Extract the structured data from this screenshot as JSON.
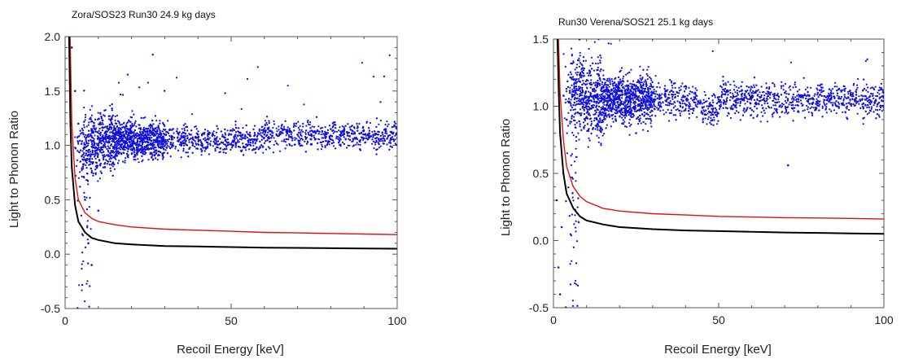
{
  "chart_data": [
    {
      "type": "scatter",
      "title": "Zora/SOS23 Run30 24.9 kg days",
      "xlabel": "Recoil Energy [keV]",
      "ylabel": "Light to Phonon Ratio",
      "xlim": [
        0,
        100
      ],
      "ylim": [
        -0.5,
        2.0
      ],
      "xticks": [
        0,
        50,
        100
      ],
      "xtick_labels": [
        "0",
        "50",
        "100"
      ],
      "yticks": [
        -0.5,
        0.0,
        0.5,
        1.0,
        1.5,
        2.0
      ],
      "ytick_labels": [
        "-0.5",
        "0.0",
        "0.5",
        "1.0",
        "1.5",
        "2.0"
      ],
      "grid": false,
      "series": [
        {
          "kind": "scatter",
          "color": "#1010e0",
          "points": [
            [
              2,
              1.9
            ],
            [
              3,
              1.5
            ],
            [
              4,
              1.2
            ],
            [
              5,
              0.9
            ],
            [
              6,
              0.5
            ],
            [
              7,
              0.1
            ],
            [
              8,
              -0.1
            ],
            [
              10,
              0.4
            ],
            [
              10,
              1.0
            ],
            [
              12,
              0.8
            ],
            [
              15,
              1.1
            ],
            [
              20,
              1.0
            ],
            [
              25,
              1.0
            ],
            [
              30,
              1.1
            ],
            [
              35,
              1.0
            ],
            [
              40,
              1.1
            ],
            [
              50,
              1.1
            ],
            [
              60,
              1.1
            ],
            [
              70,
              1.1
            ],
            [
              80,
              1.15
            ],
            [
              90,
              1.1
            ],
            [
              100,
              1.1
            ]
          ]
        },
        {
          "kind": "line",
          "color": "#e01010",
          "points": [
            [
              1.5,
              2.0
            ],
            [
              2,
              1.2
            ],
            [
              3,
              0.7
            ],
            [
              4,
              0.5
            ],
            [
              6,
              0.38
            ],
            [
              8,
              0.33
            ],
            [
              10,
              0.3
            ],
            [
              15,
              0.27
            ],
            [
              20,
              0.25
            ],
            [
              30,
              0.23
            ],
            [
              40,
              0.22
            ],
            [
              50,
              0.21
            ],
            [
              60,
              0.2
            ],
            [
              70,
              0.195
            ],
            [
              80,
              0.19
            ],
            [
              90,
              0.185
            ],
            [
              100,
              0.18
            ]
          ]
        },
        {
          "kind": "line",
          "color": "#000000",
          "points": [
            [
              1.2,
              2.0
            ],
            [
              1.6,
              1.2
            ],
            [
              2,
              0.8
            ],
            [
              3,
              0.45
            ],
            [
              4,
              0.3
            ],
            [
              6,
              0.2
            ],
            [
              8,
              0.15
            ],
            [
              10,
              0.13
            ],
            [
              15,
              0.1
            ],
            [
              20,
              0.09
            ],
            [
              30,
              0.075
            ],
            [
              40,
              0.07
            ],
            [
              50,
              0.065
            ],
            [
              60,
              0.06
            ],
            [
              70,
              0.058
            ],
            [
              80,
              0.055
            ],
            [
              90,
              0.052
            ],
            [
              100,
              0.05
            ]
          ]
        }
      ]
    },
    {
      "type": "scatter",
      "title": "Run30 Verena/SOS21 25.1 kg days",
      "xlabel": "Recoil Energy [keV]",
      "ylabel": "Light to Phonon Ratio",
      "xlim": [
        0,
        100
      ],
      "ylim": [
        -0.5,
        1.5
      ],
      "xticks": [
        0,
        50,
        100
      ],
      "xtick_labels": [
        "0",
        "50",
        "100"
      ],
      "yticks": [
        -0.5,
        0.0,
        0.5,
        1.0,
        1.5
      ],
      "ytick_labels": [
        "-0.5",
        "0.0",
        "0.5",
        "1.0",
        "1.5"
      ],
      "grid": false,
      "series": [
        {
          "kind": "scatter",
          "color": "#1010e0",
          "points": [
            [
              1,
              0.3
            ],
            [
              1.5,
              -0.2
            ],
            [
              2,
              -0.4
            ],
            [
              2.5,
              0.1
            ],
            [
              3,
              0.5
            ],
            [
              4,
              0.9
            ],
            [
              5,
              1.1
            ],
            [
              6,
              1.2
            ],
            [
              10,
              1.0
            ],
            [
              20,
              1.05
            ],
            [
              25,
              0.8
            ],
            [
              30,
              1.1
            ],
            [
              40,
              1.15
            ],
            [
              47,
              1.0
            ],
            [
              50,
              1.05
            ],
            [
              60,
              1.1
            ],
            [
              70,
              1.1
            ],
            [
              71,
              0.56
            ],
            [
              80,
              1.1
            ],
            [
              90,
              1.1
            ],
            [
              100,
              1.1
            ]
          ]
        },
        {
          "kind": "line",
          "color": "#e01010",
          "points": [
            [
              1.5,
              1.5
            ],
            [
              2,
              1.1
            ],
            [
              3,
              0.75
            ],
            [
              4,
              0.55
            ],
            [
              6,
              0.4
            ],
            [
              8,
              0.33
            ],
            [
              10,
              0.29
            ],
            [
              15,
              0.24
            ],
            [
              20,
              0.22
            ],
            [
              30,
              0.2
            ],
            [
              40,
              0.19
            ],
            [
              50,
              0.18
            ],
            [
              60,
              0.175
            ],
            [
              70,
              0.17
            ],
            [
              80,
              0.168
            ],
            [
              90,
              0.165
            ],
            [
              100,
              0.16
            ]
          ]
        },
        {
          "kind": "line",
          "color": "#000000",
          "points": [
            [
              1.2,
              1.5
            ],
            [
              1.6,
              1.1
            ],
            [
              2,
              0.8
            ],
            [
              3,
              0.5
            ],
            [
              4,
              0.35
            ],
            [
              6,
              0.24
            ],
            [
              8,
              0.18
            ],
            [
              10,
              0.15
            ],
            [
              15,
              0.12
            ],
            [
              20,
              0.1
            ],
            [
              30,
              0.085
            ],
            [
              40,
              0.075
            ],
            [
              50,
              0.07
            ],
            [
              60,
              0.065
            ],
            [
              70,
              0.06
            ],
            [
              80,
              0.057
            ],
            [
              90,
              0.053
            ],
            [
              100,
              0.05
            ]
          ]
        }
      ]
    }
  ]
}
